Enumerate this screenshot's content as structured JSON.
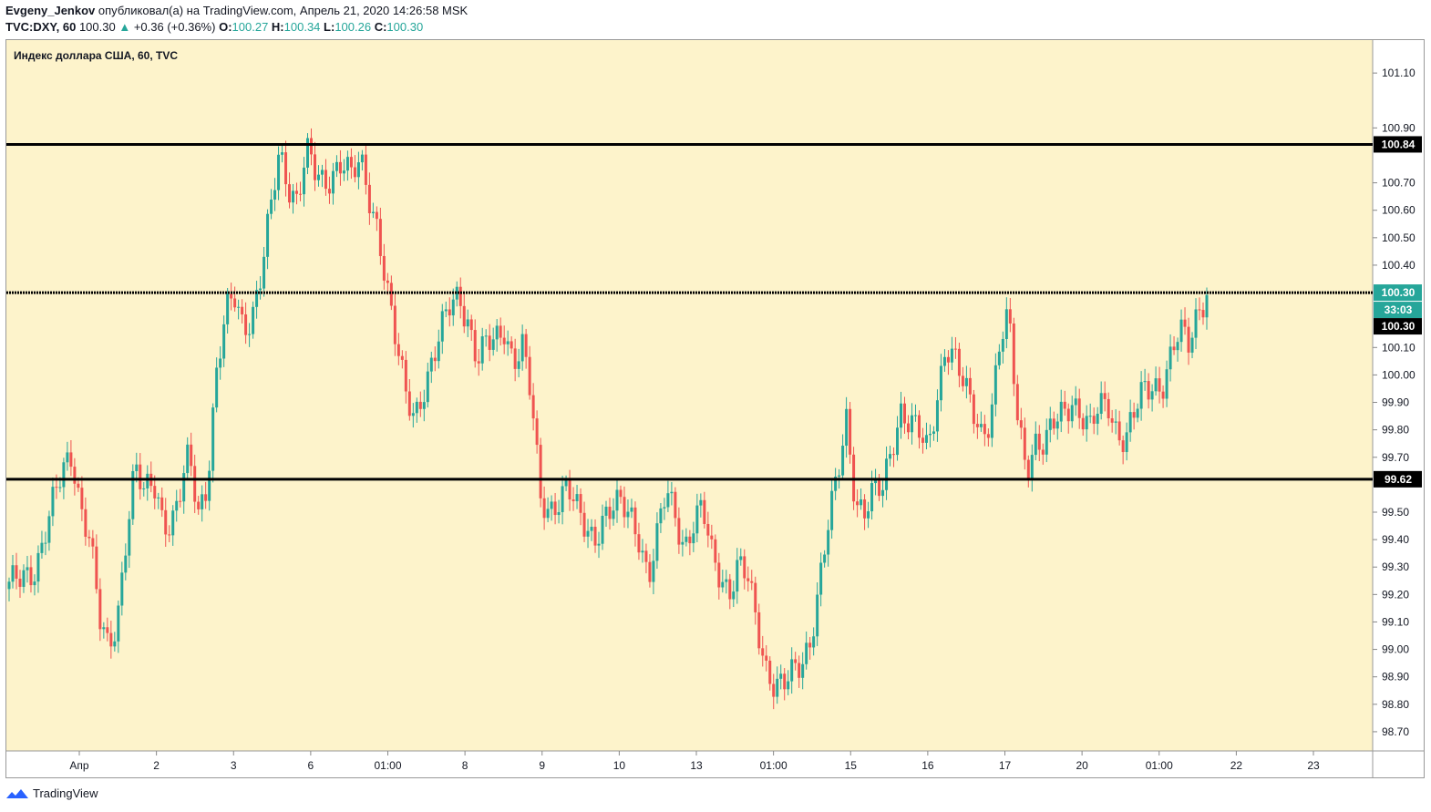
{
  "header": {
    "author": "Evgeny_Jenkov",
    "published": "опубликовал(а) на TradingView.com, Апрель 21, 2020 14:26:58 MSK",
    "symbol": "TVC:DXY, 60",
    "last": "100.30",
    "change_arrow": "▲",
    "change": "+0.36 (+0.36%)",
    "o_label": "O:",
    "o": "100.27",
    "h_label": "H:",
    "h": "100.34",
    "l_label": "L:",
    "l": "100.26",
    "c_label": "C:",
    "c": "100.30"
  },
  "footer": {
    "brand": "TradingView",
    "logo_icon": "tradingview-logo-icon"
  },
  "colors": {
    "background": "#fdf3cb",
    "up": "#26a69a",
    "down": "#ef5350",
    "level": "#000000"
  },
  "chart_data": {
    "type": "candlestick",
    "title": "Индекс доллара США, 60, TVC",
    "y_ticks": [
      "101.10",
      "100.90",
      "100.70",
      "100.60",
      "100.50",
      "100.40",
      "100.10",
      "100.00",
      "99.90",
      "99.80",
      "99.70",
      "99.50",
      "99.40",
      "99.30",
      "99.20",
      "99.10",
      "99.00",
      "98.90",
      "98.80",
      "98.70"
    ],
    "ylim": [
      98.63,
      101.22
    ],
    "x_ticks": [
      "Апр",
      "2",
      "3",
      "6",
      "01:00",
      "8",
      "9",
      "10",
      "13",
      "01:00",
      "15",
      "16",
      "17",
      "20",
      "01:00",
      "22",
      "23"
    ],
    "horizontal_levels": [
      {
        "value": 100.84,
        "label": "100.84",
        "style": "solid"
      },
      {
        "value": 100.3,
        "label": "100.30",
        "style": "dotted"
      },
      {
        "value": 99.62,
        "label": "99.62",
        "style": "solid"
      }
    ],
    "price_markers": [
      {
        "value": 100.3,
        "label": "100.30",
        "kind": "last"
      },
      {
        "label": "33:03",
        "kind": "countdown"
      },
      {
        "value": 100.3,
        "label": "100.30",
        "kind": "level"
      }
    ],
    "close_path": [
      [
        0,
        99.22
      ],
      [
        3,
        99.31
      ],
      [
        6,
        99.65
      ],
      [
        7,
        99.72
      ],
      [
        8,
        99.52
      ],
      [
        9,
        99.4
      ],
      [
        10,
        99.1
      ],
      [
        11,
        99.0
      ],
      [
        12,
        99.12
      ],
      [
        13,
        99.42
      ],
      [
        14,
        99.66
      ],
      [
        15,
        99.55
      ],
      [
        16,
        99.62
      ],
      [
        17,
        99.5
      ],
      [
        18,
        99.45
      ],
      [
        19,
        99.56
      ],
      [
        20,
        99.7
      ],
      [
        21,
        99.5
      ],
      [
        22,
        99.62
      ],
      [
        23,
        100.0
      ],
      [
        24,
        100.2
      ],
      [
        25,
        100.28
      ],
      [
        26,
        100.18
      ],
      [
        27,
        100.23
      ],
      [
        28,
        100.37
      ],
      [
        29,
        100.58
      ],
      [
        30,
        100.8
      ],
      [
        31,
        100.7
      ],
      [
        32,
        100.65
      ],
      [
        33,
        100.82
      ],
      [
        34,
        100.72
      ],
      [
        35,
        100.68
      ],
      [
        36,
        100.75
      ],
      [
        37,
        100.8
      ],
      [
        38,
        100.72
      ],
      [
        39,
        100.76
      ],
      [
        40,
        100.64
      ],
      [
        41,
        100.54
      ],
      [
        42,
        100.32
      ],
      [
        43,
        100.1
      ],
      [
        44,
        99.92
      ],
      [
        45,
        99.85
      ],
      [
        46,
        99.96
      ],
      [
        47,
        100.05
      ],
      [
        48,
        100.15
      ],
      [
        49,
        100.25
      ],
      [
        50,
        100.3
      ],
      [
        51,
        100.2
      ],
      [
        52,
        100.05
      ],
      [
        53,
        100.1
      ],
      [
        54,
        100.12
      ],
      [
        55,
        100.18
      ],
      [
        56,
        100.06
      ],
      [
        57,
        100.1
      ],
      [
        58,
        99.9
      ],
      [
        59,
        99.55
      ],
      [
        60,
        99.52
      ],
      [
        61,
        99.55
      ],
      [
        62,
        99.58
      ],
      [
        63,
        99.5
      ],
      [
        64,
        99.45
      ],
      [
        65,
        99.42
      ],
      [
        66,
        99.48
      ],
      [
        67,
        99.5
      ],
      [
        68,
        99.52
      ],
      [
        69,
        99.5
      ],
      [
        70,
        99.42
      ],
      [
        71,
        99.25
      ],
      [
        72,
        99.4
      ],
      [
        73,
        99.58
      ],
      [
        74,
        99.5
      ],
      [
        75,
        99.38
      ],
      [
        76,
        99.45
      ],
      [
        77,
        99.5
      ],
      [
        78,
        99.35
      ],
      [
        79,
        99.28
      ],
      [
        80,
        99.22
      ],
      [
        81,
        99.3
      ],
      [
        82,
        99.25
      ],
      [
        83,
        99.1
      ],
      [
        84,
        98.95
      ],
      [
        85,
        98.88
      ],
      [
        86,
        98.86
      ],
      [
        87,
        98.9
      ],
      [
        88,
        98.95
      ],
      [
        89,
        99.05
      ],
      [
        90,
        99.25
      ],
      [
        91,
        99.45
      ],
      [
        92,
        99.62
      ],
      [
        93,
        99.85
      ],
      [
        94,
        99.55
      ],
      [
        95,
        99.5
      ],
      [
        96,
        99.56
      ],
      [
        97,
        99.58
      ],
      [
        98,
        99.75
      ],
      [
        99,
        99.88
      ],
      [
        100,
        99.82
      ],
      [
        101,
        99.78
      ],
      [
        102,
        99.72
      ],
      [
        103,
        99.92
      ],
      [
        104,
        100.12
      ],
      [
        105,
        100.05
      ],
      [
        106,
        99.95
      ],
      [
        107,
        99.88
      ],
      [
        108,
        99.8
      ],
      [
        109,
        99.85
      ],
      [
        110,
        100.1
      ],
      [
        111,
        100.2
      ],
      [
        112,
        99.85
      ],
      [
        113,
        99.68
      ],
      [
        114,
        99.75
      ],
      [
        115,
        99.72
      ],
      [
        116,
        99.82
      ],
      [
        117,
        99.88
      ],
      [
        118,
        99.92
      ],
      [
        119,
        99.85
      ],
      [
        120,
        99.78
      ],
      [
        121,
        99.88
      ],
      [
        122,
        99.92
      ],
      [
        123,
        99.8
      ],
      [
        124,
        99.75
      ],
      [
        125,
        99.85
      ],
      [
        126,
        99.95
      ],
      [
        127,
        99.98
      ],
      [
        128,
        99.96
      ],
      [
        129,
        100.05
      ],
      [
        130,
        100.15
      ],
      [
        131,
        100.12
      ],
      [
        132,
        100.25
      ],
      [
        133,
        100.3
      ]
    ]
  }
}
